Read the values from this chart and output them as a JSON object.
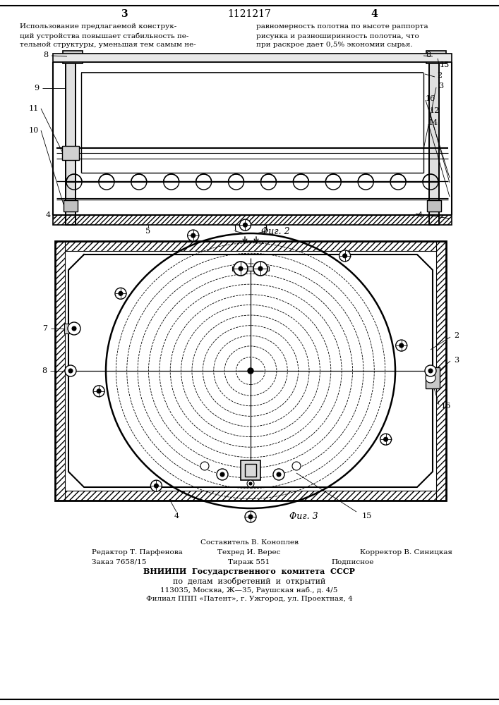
{
  "page_number_left": "3",
  "page_number_right": "4",
  "patent_number": "1121217",
  "header_text_left": [
    "Использование предлагаемой конструк-",
    "ций устройства повышает стабильность пе-",
    "тельной структуры, уменьшая тем самым не-"
  ],
  "header_text_right": [
    "равномерность полотна по высоте раппорта",
    "рисунка и разноширинность полотна, что",
    "при раскрое дает 0,5% экономии сырья."
  ],
  "footer_line0": "Составитель В. Коноплев",
  "footer_line1_left": "Редактор Т. Парфенова",
  "footer_line1_mid": "Техред И. Верес",
  "footer_line1_right": "Корректор В. Синицкая",
  "footer_line2_left": "Заказ 7658/15",
  "footer_line2_mid": "Тираж 551",
  "footer_line2_right": "Подписное",
  "footer_line3": "ВНИИПИ  Государственного  комитета  СССР",
  "footer_line4": "по  делам  изобретений  и  открытий",
  "footer_line5": "113035, Москва, Ж—35, Раушская наб., д. 4/5",
  "footer_line6": "Филиал ППП «Патент», г. Ужгород, ул. Проектная, 4",
  "fig2_label": "Φиг. 2",
  "fig3_label": "Φиг. 3",
  "bg_color": "#ffffff"
}
